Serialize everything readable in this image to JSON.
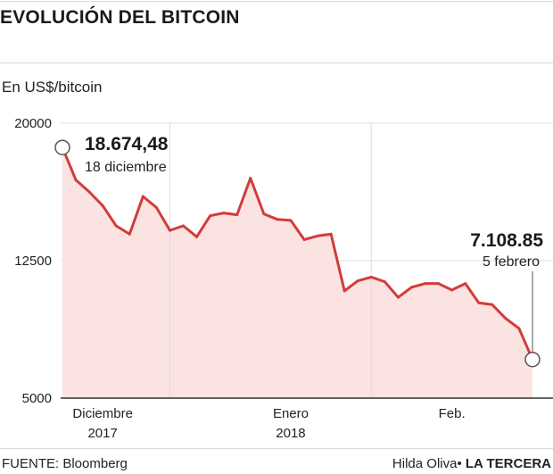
{
  "header": {
    "title": "EVOLUCIÓN DEL BITCOIN",
    "unit": "En US$/bitcoin"
  },
  "footer": {
    "source": "FUENTE: Bloomberg",
    "author": "Hilda Oliva",
    "separator": "•",
    "brand": "LA TERCERA"
  },
  "colors": {
    "line": "#d23c3c",
    "fill": "#fbe3e1",
    "grid": "#dddddd"
  },
  "chart_data": {
    "type": "area",
    "ylim": [
      5000,
      20000
    ],
    "yticks": [
      20000,
      12500,
      5000
    ],
    "x_labels": [
      {
        "index": 3,
        "line1": "Diciembre",
        "line2": "2017"
      },
      {
        "index": 17,
        "line1": "Enero",
        "line2": "2018"
      },
      {
        "index": 29,
        "line1": "Feb.",
        "line2": ""
      }
    ],
    "x_gridlines_at_index": [
      8,
      23
    ],
    "values": [
      18674.48,
      16900,
      16250,
      15500,
      14400,
      13950,
      16000,
      15400,
      14150,
      14400,
      13800,
      14950,
      15100,
      15000,
      17000,
      15050,
      14750,
      14700,
      13650,
      13850,
      13950,
      10850,
      11400,
      11600,
      11350,
      10500,
      11050,
      11250,
      11250,
      10900,
      11250,
      10200,
      10100,
      9350,
      8800,
      7108.85
    ],
    "annotations": [
      {
        "index": 0,
        "value_label": "18.674,48",
        "date_label": "18 diciembre"
      },
      {
        "index": 35,
        "value_label": "7.108.85",
        "date_label": "5 febrero"
      }
    ]
  }
}
